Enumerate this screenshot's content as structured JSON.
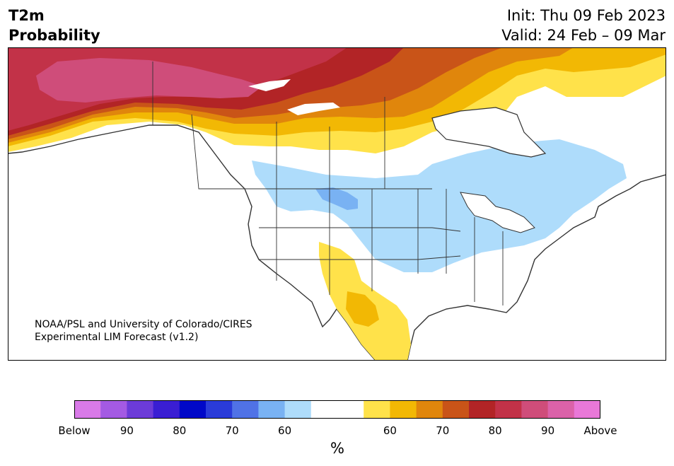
{
  "header": {
    "title_line1": "T2m",
    "title_line2": "Probability",
    "init": "Init: Thu 09 Feb 2023",
    "valid": "Valid: 24 Feb – 09 Mar"
  },
  "credit": {
    "line1": "NOAA/PSL and University of Colorado/CIRES",
    "line2": "Experimental LIM Forecast (v1.2)"
  },
  "colorbar": {
    "unit": "%",
    "colors": [
      "#d97ae8",
      "#a45ae3",
      "#6c3bd8",
      "#3a1ed3",
      "#0008c8",
      "#2a3bd9",
      "#5072e6",
      "#79b2f3",
      "#aedcfb",
      "#ffffff",
      "#ffffff",
      "#ffe24a",
      "#f2b804",
      "#e0860c",
      "#c95418",
      "#b22426",
      "#c23248",
      "#cf4d7a",
      "#db62a9",
      "#e978d8"
    ],
    "tick_labels": [
      "Below",
      "90",
      "80",
      "70",
      "60",
      "60",
      "70",
      "80",
      "90",
      "Above"
    ]
  },
  "map": {
    "colors": {
      "ocean": "#ffffff",
      "land": "#ffffff",
      "border": "#333333",
      "above_90": "#cf4d7a",
      "above_80": "#c23248",
      "above_75": "#b22426",
      "above_70": "#c95418",
      "above_65": "#e0860c",
      "above_60": "#f2b804",
      "above_55": "#ffe24a",
      "below_55": "#aedcfb",
      "below_60": "#79b2f3"
    }
  }
}
